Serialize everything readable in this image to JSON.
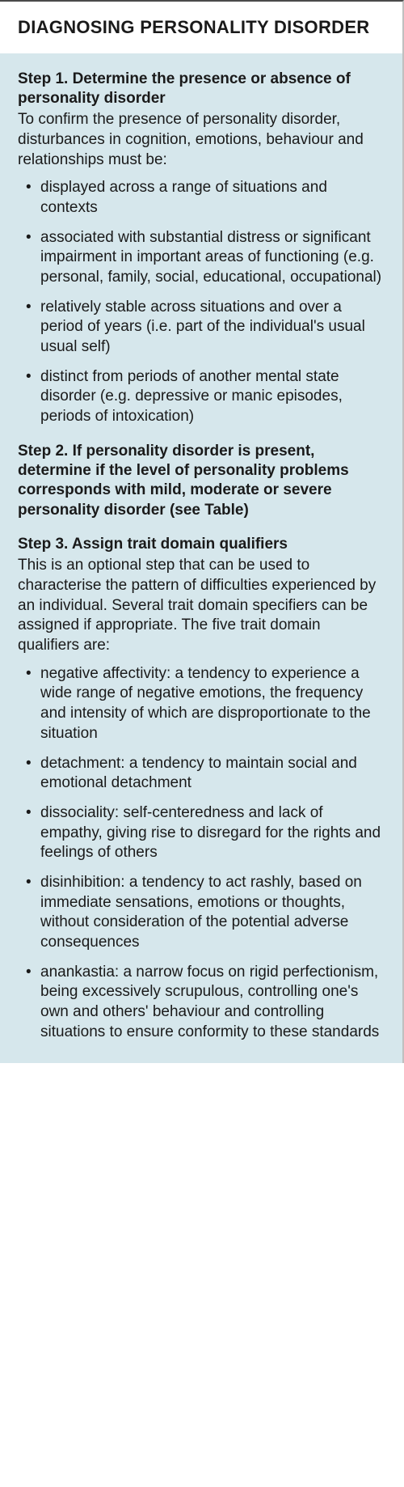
{
  "colors": {
    "top_border": "#4a4a4a",
    "right_border": "#c0c0c0",
    "header_bg": "#ffffff",
    "body_bg": "#d6e7ec",
    "text": "#1a1a1a"
  },
  "typography": {
    "header_fontsize": 22,
    "body_fontsize": 19,
    "header_weight": 900,
    "step_title_weight": 700
  },
  "header": {
    "title": "DIAGNOSING PERSONALITY DISORDER"
  },
  "steps": [
    {
      "title": "Step 1. Determine the presence or absence of personality disorder",
      "intro": "To confirm the presence of personality disorder, disturbances in cognition, emotions, behaviour and relationships must be:",
      "bullets": [
        "displayed across a range of situations and contexts",
        "associated with substantial distress or significant impairment in important areas of functioning (e.g. personal, family, social, educational, occupational)",
        "relatively stable across situations and over a period of years (i.e. part of the individual's usual usual self)",
        "distinct from periods of another mental state disorder (e.g. depressive or manic episodes, periods of intoxication)"
      ]
    },
    {
      "title": "Step 2. If personality disorder is present, determine if the level of personality problems corresponds with mild, moderate or severe personality disorder (see Table)",
      "intro": "",
      "bullets": []
    },
    {
      "title": "Step 3. Assign trait domain qualifiers",
      "intro": "This is an optional step that can be used to characterise the pattern of difficulties experienced by an individual. Several trait domain specifiers can be assigned if appropriate. The five trait domain qualifiers are:",
      "bullets": [
        "negative affectivity: a tendency to experience a wide range of negative emotions, the frequency and intensity of which are disproportionate to the situation",
        "detachment: a tendency to maintain social and emotional detachment",
        "dissociality: self-centeredness and lack of empathy, giving rise to disregard for the rights and feelings of others",
        "disinhibition: a tendency to act rashly, based on immediate sensations, emotions or thoughts, without consideration of the potential adverse consequences",
        "anankastia: a narrow focus on rigid perfectionism, being excessively scrupulous, controlling one's own and others' behaviour and controlling situations to ensure conformity to these standards"
      ]
    }
  ]
}
